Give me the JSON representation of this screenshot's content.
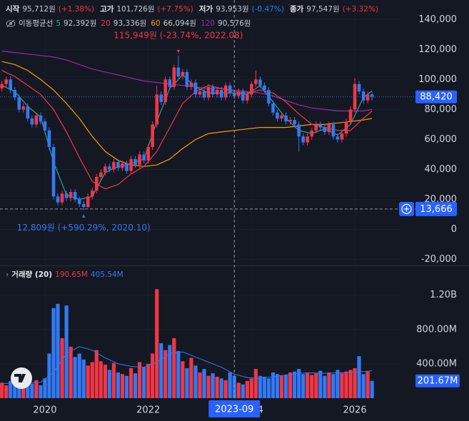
{
  "chart_data": {
    "type": "candlestick",
    "ohlc_legend": [
      {
        "label": "시작",
        "value": "95,712원",
        "change": "(+1.38%)",
        "color": "#f23645"
      },
      {
        "label": "고가",
        "value": "101,726원",
        "change": "(+7.75%)",
        "color": "#f23645"
      },
      {
        "label": "저가",
        "value": "93,953원",
        "change": "(-0.47%)",
        "color": "#3179f5"
      },
      {
        "label": "종가",
        "value": "97,547원",
        "change": "(+3.32%)",
        "color": "#f23645"
      }
    ],
    "ma_title": "이동평균선",
    "ma_x": [
      2019.167,
      2019.417,
      2019.667,
      2019.917,
      2020.167,
      2020.417,
      2020.667,
      2020.917,
      2021.167,
      2021.417,
      2021.667,
      2021.917,
      2022.167,
      2022.417,
      2022.667,
      2022.917,
      2023.167,
      2023.417,
      2023.667,
      2023.917,
      2024.167,
      2024.417,
      2024.667,
      2024.917,
      2025.167,
      2025.417,
      2025.667,
      2025.917,
      2026.167,
      2026.333
    ],
    "ma_series": [
      {
        "name": "5",
        "color": "#26a69a",
        "legend_value": "92,392원",
        "values": [
          96000,
          92000,
          82000,
          75000,
          45000,
          23000,
          20000,
          22000,
          38000,
          42000,
          44000,
          47000,
          72000,
          94000,
          103000,
          95000,
          91000,
          91000,
          91000,
          90000,
          96000,
          85000,
          74000,
          66000,
          64000,
          67000,
          63000,
          70000,
          88000,
          92392
        ]
      },
      {
        "name": "20",
        "color": "#f23645",
        "legend_value": "93,336원",
        "values": [
          106000,
          102000,
          96000,
          90000,
          80000,
          65000,
          48000,
          32000,
          27000,
          30000,
          37000,
          42000,
          52000,
          68000,
          84000,
          92000,
          96000,
          94000,
          92000,
          91000,
          93000,
          91000,
          85000,
          77000,
          70000,
          68000,
          66000,
          66000,
          74000,
          79000
        ]
      },
      {
        "name": "60",
        "color": "#ff9800",
        "legend_value": "66,094원",
        "values": [
          112000,
          110000,
          106000,
          100000,
          93000,
          84000,
          74000,
          62000,
          52000,
          46000,
          43000,
          42000,
          43000,
          47000,
          54000,
          60000,
          64000,
          65000,
          66000,
          67000,
          68000,
          68000,
          68000,
          69000,
          70000,
          70000,
          71000,
          72000,
          73000,
          74000
        ]
      },
      {
        "name": "120",
        "color": "#9c27b0",
        "legend_value": "90,576원",
        "values": [
          119000,
          118000,
          117000,
          116000,
          115000,
          113000,
          110000,
          107000,
          105000,
          103000,
          101000,
          99000,
          98000,
          97000,
          96000,
          95000,
          94000,
          94000,
          93000,
          92000,
          91000,
          89000,
          86000,
          83000,
          81000,
          80000,
          79000,
          79000,
          79000,
          80000
        ]
      }
    ],
    "up_color": "#f23645",
    "down_color": "#3179f5",
    "x": [
      2019.167,
      2019.25,
      2019.333,
      2019.417,
      2019.5,
      2019.583,
      2019.667,
      2019.75,
      2019.833,
      2019.917,
      2020,
      2020.083,
      2020.167,
      2020.25,
      2020.333,
      2020.417,
      2020.5,
      2020.583,
      2020.667,
      2020.75,
      2020.833,
      2020.917,
      2021,
      2021.083,
      2021.167,
      2021.25,
      2021.333,
      2021.417,
      2021.5,
      2021.583,
      2021.667,
      2021.75,
      2021.833,
      2021.917,
      2022,
      2022.083,
      2022.167,
      2022.25,
      2022.333,
      2022.417,
      2022.5,
      2022.583,
      2022.667,
      2022.75,
      2022.833,
      2022.917,
      2023,
      2023.083,
      2023.167,
      2023.25,
      2023.333,
      2023.417,
      2023.5,
      2023.583,
      2023.667,
      2023.75,
      2023.833,
      2023.917,
      2024,
      2024.083,
      2024.167,
      2024.25,
      2024.333,
      2024.417,
      2024.5,
      2024.583,
      2024.667,
      2024.75,
      2024.833,
      2024.917,
      2025,
      2025.083,
      2025.167,
      2025.25,
      2025.333,
      2025.417,
      2025.5,
      2025.583,
      2025.667,
      2025.75,
      2025.833,
      2025.917,
      2026,
      2026.083,
      2026.167,
      2026.25,
      2026.333
    ],
    "open": [
      94000,
      97000,
      100000,
      93000,
      88000,
      80000,
      82000,
      74000,
      70000,
      76000,
      72000,
      66000,
      55000,
      22000,
      18000,
      24000,
      21000,
      25000,
      20000,
      17000,
      15000,
      22000,
      26000,
      35000,
      38000,
      42000,
      40000,
      45000,
      41000,
      44000,
      39000,
      47000,
      43000,
      50000,
      46000,
      55000,
      70000,
      90000,
      85000,
      100000,
      95000,
      108000,
      102000,
      105000,
      95000,
      98000,
      90000,
      92000,
      88000,
      95000,
      90000,
      93000,
      88000,
      96000,
      91000,
      89000,
      92000,
      86000,
      90000,
      97000,
      100000,
      96000,
      93000,
      84000,
      78000,
      74000,
      76000,
      72000,
      73000,
      70000,
      62000,
      58000,
      62000,
      66000,
      70000,
      68000,
      65000,
      70000,
      62000,
      60000,
      64000,
      72000,
      80000,
      97000,
      92000,
      86000,
      90000
    ],
    "high": [
      99000,
      102000,
      102000,
      95000,
      90000,
      84000,
      84000,
      76000,
      78000,
      78000,
      74000,
      68000,
      57000,
      24000,
      26000,
      26000,
      27000,
      27000,
      22000,
      19000,
      24000,
      28000,
      37000,
      40000,
      44000,
      44000,
      47000,
      47000,
      46000,
      46000,
      49000,
      49000,
      52000,
      52000,
      57000,
      72000,
      96000,
      92000,
      102000,
      102000,
      110000,
      115949,
      107000,
      107000,
      100000,
      100000,
      94000,
      94000,
      97000,
      97000,
      95000,
      95000,
      98000,
      98000,
      93000,
      94000,
      94000,
      92000,
      99000,
      106000,
      102000,
      98000,
      95000,
      86000,
      80000,
      78000,
      78000,
      75000,
      75000,
      72000,
      64000,
      64000,
      68000,
      72000,
      72000,
      70000,
      72000,
      72000,
      64000,
      66000,
      74000,
      82000,
      101000,
      99000,
      94000,
      92000,
      92000
    ],
    "low": [
      92000,
      95000,
      91000,
      86000,
      78000,
      78000,
      72000,
      68000,
      68000,
      70000,
      64000,
      53000,
      20000,
      16000,
      16000,
      19000,
      19000,
      18000,
      15000,
      12809,
      14000,
      20000,
      24000,
      33000,
      36000,
      38000,
      38000,
      39000,
      39000,
      37000,
      37000,
      41000,
      41000,
      44000,
      44000,
      53000,
      68000,
      83000,
      83000,
      93000,
      93000,
      100000,
      100000,
      93000,
      93000,
      88000,
      88000,
      86000,
      86000,
      88000,
      88000,
      86000,
      86000,
      89000,
      87000,
      87000,
      84000,
      84000,
      88000,
      95000,
      94000,
      91000,
      82000,
      76000,
      72000,
      72000,
      70000,
      70000,
      68000,
      52000,
      56000,
      56000,
      60000,
      64000,
      66000,
      63000,
      63000,
      60000,
      58000,
      58000,
      62000,
      70000,
      78000,
      90000,
      84000,
      84000,
      86000
    ],
    "close": [
      97000,
      100000,
      93000,
      88000,
      80000,
      82000,
      74000,
      70000,
      76000,
      72000,
      66000,
      55000,
      22000,
      18000,
      24000,
      21000,
      25000,
      20000,
      17000,
      15000,
      22000,
      26000,
      35000,
      38000,
      42000,
      40000,
      45000,
      41000,
      44000,
      39000,
      47000,
      43000,
      50000,
      46000,
      55000,
      70000,
      90000,
      85000,
      100000,
      95000,
      108000,
      102000,
      105000,
      95000,
      98000,
      90000,
      92000,
      88000,
      95000,
      90000,
      93000,
      88000,
      96000,
      91000,
      89000,
      92000,
      86000,
      90000,
      97000,
      100000,
      96000,
      93000,
      84000,
      78000,
      74000,
      76000,
      72000,
      73000,
      70000,
      62000,
      58000,
      62000,
      66000,
      70000,
      68000,
      65000,
      70000,
      62000,
      60000,
      64000,
      72000,
      80000,
      97000,
      92000,
      86000,
      90000,
      88420
    ],
    "volume": [
      180000000,
      150000000,
      200000000,
      170000000,
      140000000,
      160000000,
      190000000,
      170000000,
      210000000,
      150000000,
      230000000,
      520000000,
      1050000000,
      1100000000,
      700000000,
      1080000000,
      600000000,
      480000000,
      520000000,
      450000000,
      380000000,
      420000000,
      560000000,
      430000000,
      390000000,
      330000000,
      410000000,
      300000000,
      280000000,
      260000000,
      350000000,
      290000000,
      420000000,
      360000000,
      400000000,
      520000000,
      1270000000,
      640000000,
      560000000,
      620000000,
      700000000,
      550000000,
      430000000,
      350000000,
      470000000,
      380000000,
      300000000,
      340000000,
      260000000,
      290000000,
      250000000,
      230000000,
      210000000,
      300000000,
      260000000,
      180000000,
      160000000,
      200000000,
      230000000,
      340000000,
      260000000,
      250000000,
      230000000,
      300000000,
      280000000,
      260000000,
      270000000,
      300000000,
      310000000,
      340000000,
      280000000,
      300000000,
      270000000,
      290000000,
      320000000,
      260000000,
      300000000,
      280000000,
      330000000,
      290000000,
      310000000,
      330000000,
      350000000,
      490000000,
      280000000,
      310000000,
      201670000
    ],
    "volume_ma": {
      "color": "#3179f5",
      "values": [
        170000000,
        175000000,
        180000000,
        185000000,
        300000000,
        520000000,
        600000000,
        560000000,
        470000000,
        400000000,
        370000000,
        360000000,
        420000000,
        520000000,
        540000000,
        480000000,
        420000000,
        360000000,
        280000000,
        240000000,
        230000000,
        250000000,
        270000000,
        290000000,
        295000000,
        290000000,
        295000000,
        300000000,
        310000000,
        320000000
      ]
    },
    "volume_legend": {
      "title": "거래량 (20)",
      "up": "190.65M",
      "down": "405.54M"
    },
    "xlim": [
      2019.13,
      2026.87
    ],
    "xticks": [
      2020,
      2022,
      2024,
      2026
    ],
    "ylim": [
      -24000,
      153000
    ],
    "yticks": [
      {
        "value": -20000,
        "label": "-20,000"
      },
      0,
      {
        "value": 20000,
        "label": "20,000"
      },
      {
        "value": 40000,
        "label": "40,000"
      },
      {
        "value": 60000,
        "label": "60,000"
      },
      {
        "value": 80000,
        "label": "80,000"
      },
      {
        "value": 100000,
        "label": "100,000"
      },
      {
        "value": 120000,
        "label": "120,000"
      },
      {
        "value": 140000,
        "label": "140,000"
      }
    ],
    "vlim": [
      0,
      1530000000
    ],
    "vticks": [
      {
        "value": 400000000,
        "label": "400.00M"
      },
      {
        "value": 800000000,
        "label": "800.00M"
      },
      {
        "value": 1200000000,
        "label": "1.20B"
      }
    ],
    "grid": true,
    "high_annotation": {
      "text": "115,949원 (-23.74%, 2022.08)",
      "x": 2022.583,
      "y": 115949
    },
    "low_annotation": {
      "text": "12,809원 (+590.29%, 2020.10)",
      "x": 2020.75,
      "y": 12809
    },
    "last_price": {
      "value": 88420,
      "label": "88,420"
    },
    "last_volume": {
      "value": 201670000,
      "label": "201.67M"
    },
    "crosshair": {
      "x": 2023.667,
      "x_label": "2023-09",
      "y": 13666,
      "y_label": "13,666"
    }
  }
}
